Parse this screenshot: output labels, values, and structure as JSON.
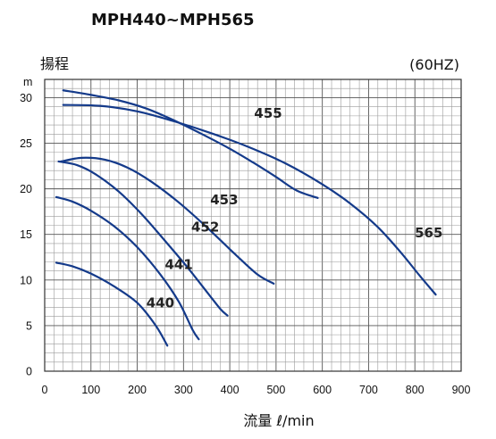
{
  "chart_data": {
    "type": "line",
    "title": "MPH440~MPH565",
    "ylabel": "揚程",
    "yunit": "m",
    "note": "(60HZ)",
    "xlabel": "流量 ℓ/min",
    "xlim": [
      0,
      900
    ],
    "ylim": [
      0,
      32
    ],
    "xticks": [
      0,
      100,
      200,
      300,
      400,
      500,
      600,
      700,
      800,
      900
    ],
    "yticks": [
      0,
      5,
      10,
      15,
      20,
      25,
      30
    ],
    "grid": true,
    "series": [
      {
        "name": "440",
        "points": [
          [
            25,
            11.9
          ],
          [
            60,
            11.5
          ],
          [
            100,
            10.7
          ],
          [
            150,
            9.3
          ],
          [
            200,
            7.5
          ],
          [
            240,
            5.0
          ],
          [
            265,
            2.8
          ]
        ]
      },
      {
        "name": "441",
        "points": [
          [
            25,
            19.1
          ],
          [
            60,
            18.6
          ],
          [
            100,
            17.6
          ],
          [
            150,
            15.9
          ],
          [
            200,
            13.6
          ],
          [
            250,
            10.6
          ],
          [
            290,
            7.6
          ],
          [
            320,
            4.5
          ],
          [
            333,
            3.5
          ]
        ]
      },
      {
        "name": "452",
        "points": [
          [
            30,
            23.0
          ],
          [
            70,
            22.6
          ],
          [
            110,
            21.6
          ],
          [
            160,
            19.7
          ],
          [
            210,
            17.2
          ],
          [
            260,
            14.3
          ],
          [
            310,
            11.3
          ],
          [
            355,
            8.4
          ],
          [
            380,
            6.8
          ],
          [
            395,
            6.1
          ]
        ]
      },
      {
        "name": "453",
        "points": [
          [
            35,
            23.0
          ],
          [
            80,
            23.4
          ],
          [
            130,
            23.2
          ],
          [
            180,
            22.3
          ],
          [
            230,
            20.8
          ],
          [
            290,
            18.5
          ],
          [
            350,
            15.8
          ],
          [
            410,
            12.9
          ],
          [
            460,
            10.6
          ],
          [
            495,
            9.6
          ]
        ]
      },
      {
        "name": "455",
        "points": [
          [
            40,
            30.8
          ],
          [
            100,
            30.3
          ],
          [
            160,
            29.7
          ],
          [
            220,
            28.8
          ],
          [
            280,
            27.5
          ],
          [
            340,
            26.0
          ],
          [
            400,
            24.4
          ],
          [
            450,
            22.9
          ],
          [
            500,
            21.3
          ],
          [
            545,
            19.8
          ],
          [
            590,
            19.0
          ]
        ]
      },
      {
        "name": "565",
        "points": [
          [
            40,
            29.2
          ],
          [
            120,
            29.1
          ],
          [
            200,
            28.5
          ],
          [
            280,
            27.4
          ],
          [
            360,
            26.1
          ],
          [
            440,
            24.6
          ],
          [
            520,
            22.8
          ],
          [
            600,
            20.5
          ],
          [
            660,
            18.4
          ],
          [
            720,
            15.8
          ],
          [
            770,
            13.0
          ],
          [
            810,
            10.5
          ],
          [
            845,
            8.4
          ]
        ]
      }
    ],
    "labels": [
      {
        "text": "455",
        "x": 483,
        "y": 27.8
      },
      {
        "text": "453",
        "x": 388,
        "y": 18.3
      },
      {
        "text": "452",
        "x": 347,
        "y": 15.3
      },
      {
        "text": "441",
        "x": 290,
        "y": 11.2
      },
      {
        "text": "440",
        "x": 250,
        "y": 7.0
      },
      {
        "text": "565",
        "x": 830,
        "y": 14.7
      }
    ]
  }
}
